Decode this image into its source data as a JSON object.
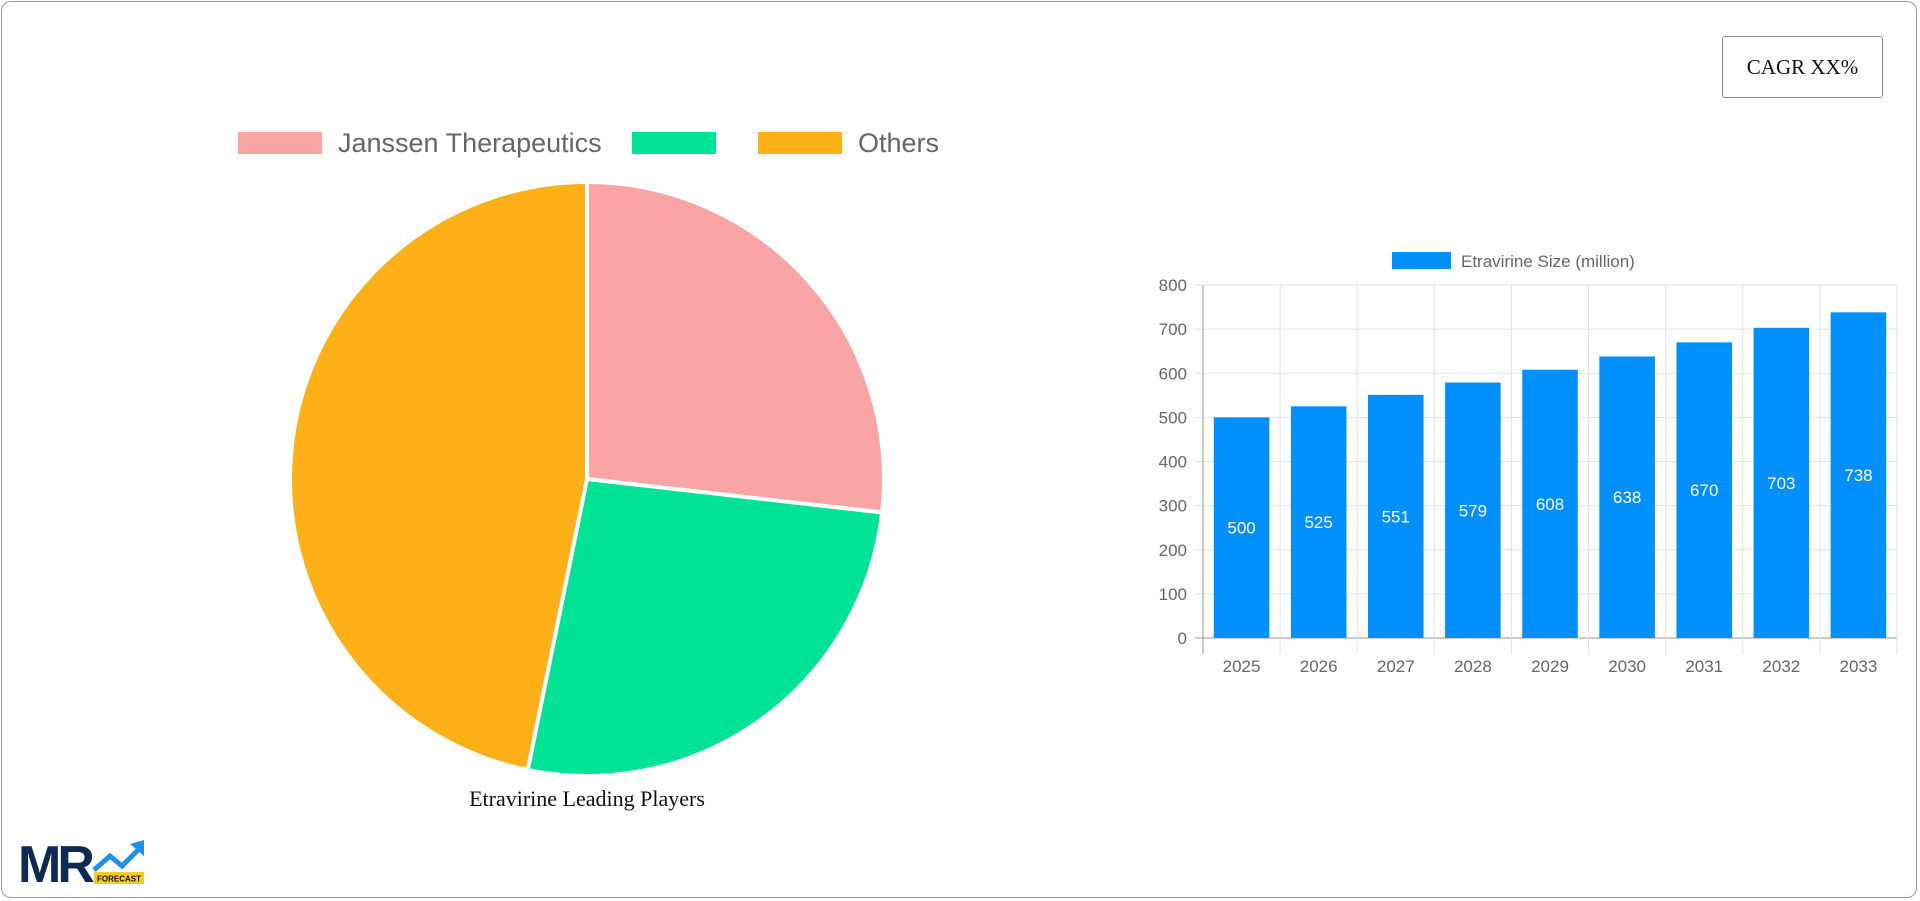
{
  "cagr_label": "CAGR XX%",
  "pie_chart": {
    "type": "pie",
    "title": "Etravirine Leading Players",
    "legend_position": "top",
    "slices": [
      {
        "name": "Janssen Therapeutics",
        "value": 26.8,
        "color": "#F9A5A6"
      },
      {
        "name": "",
        "value": 26.4,
        "color": "#00E396"
      },
      {
        "name": "Others",
        "value": 46.8,
        "color": "#FEB019"
      }
    ]
  },
  "chart_data": {
    "type": "bar",
    "categories": [
      "2025",
      "2026",
      "2027",
      "2028",
      "2029",
      "2030",
      "2031",
      "2032",
      "2033"
    ],
    "series": [
      {
        "name": "Etravirine Size (million)",
        "values": [
          500,
          525,
          551,
          579,
          608,
          638,
          670,
          703,
          738
        ],
        "color": "#008FFB"
      }
    ],
    "ylim": [
      0,
      800
    ],
    "yticks": [
      0,
      100,
      200,
      300,
      400,
      500,
      600,
      700,
      800
    ],
    "grid": true,
    "legend_position": "top",
    "data_labels": true
  },
  "logo": {
    "text": "MR",
    "sub": "FORECAST"
  }
}
